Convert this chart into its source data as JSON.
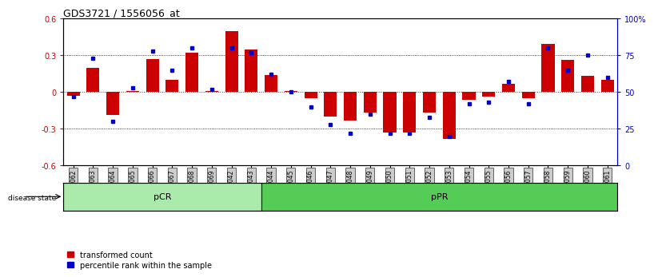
{
  "title": "GDS3721 / 1556056_at",
  "samples": [
    "GSM559062",
    "GSM559063",
    "GSM559064",
    "GSM559065",
    "GSM559066",
    "GSM559067",
    "GSM559068",
    "GSM559069",
    "GSM559042",
    "GSM559043",
    "GSM559044",
    "GSM559045",
    "GSM559046",
    "GSM559047",
    "GSM559048",
    "GSM559049",
    "GSM559050",
    "GSM559051",
    "GSM559052",
    "GSM559053",
    "GSM559054",
    "GSM559055",
    "GSM559056",
    "GSM559057",
    "GSM559058",
    "GSM559059",
    "GSM559060",
    "GSM559061"
  ],
  "red_bars": [
    -0.03,
    0.2,
    -0.19,
    0.01,
    0.27,
    0.1,
    0.32,
    0.01,
    0.5,
    0.35,
    0.14,
    0.01,
    -0.05,
    -0.2,
    -0.23,
    -0.17,
    -0.33,
    -0.33,
    -0.17,
    -0.38,
    -0.06,
    -0.04,
    0.07,
    -0.05,
    0.39,
    0.26,
    0.13,
    0.1
  ],
  "blue_dots": [
    47,
    73,
    30,
    53,
    78,
    65,
    80,
    52,
    80,
    77,
    62,
    50,
    40,
    28,
    22,
    35,
    22,
    22,
    33,
    20,
    42,
    43,
    57,
    42,
    80,
    65,
    75,
    60
  ],
  "pCR_count": 10,
  "pPR_count": 18,
  "ylim": [
    -0.6,
    0.6
  ],
  "yticks_left": [
    -0.6,
    -0.3,
    0.0,
    0.3,
    0.6
  ],
  "yticks_right": [
    0,
    25,
    50,
    75,
    100
  ],
  "red_color": "#cc0000",
  "blue_color": "#0000cc",
  "pCR_color": "#aaeaaa",
  "pPR_color": "#55cc55",
  "tick_bg_color": "#cccccc",
  "bar_width": 0.65,
  "legend_red": "transformed count",
  "legend_blue": "percentile rank within the sample",
  "label_disease": "disease state"
}
